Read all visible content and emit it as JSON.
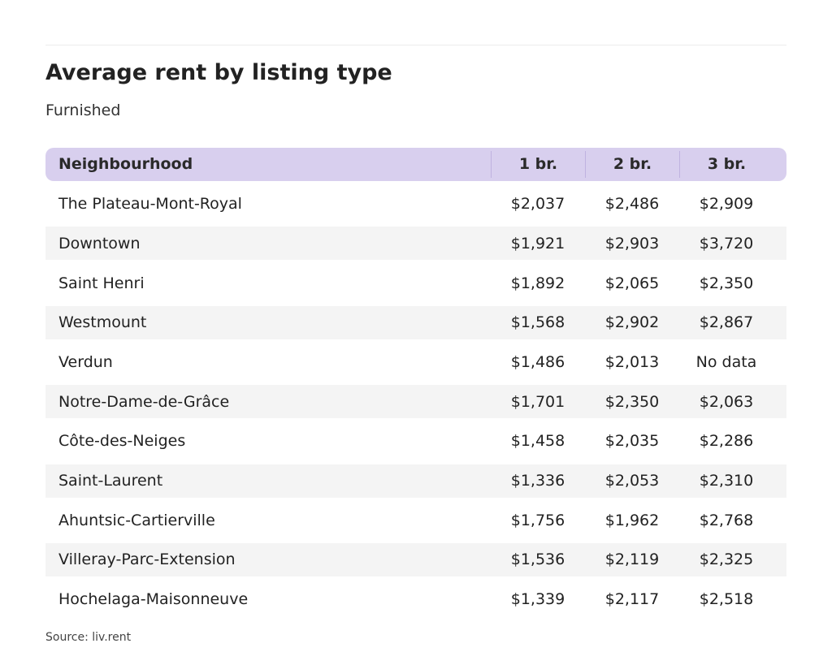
{
  "chart_data": {
    "type": "table",
    "title": "Average rent by listing type",
    "subtitle": "Furnished",
    "columns": [
      "Neighbourhood",
      "1 br.",
      "2 br.",
      "3 br."
    ],
    "rows": [
      [
        "The Plateau-Mont-Royal",
        "$2,037",
        "$2,486",
        "$2,909"
      ],
      [
        "Downtown",
        "$1,921",
        "$2,903",
        "$3,720"
      ],
      [
        "Saint Henri",
        "$1,892",
        "$2,065",
        "$2,350"
      ],
      [
        "Westmount",
        "$1,568",
        "$2,902",
        "$2,867"
      ],
      [
        "Verdun",
        "$1,486",
        "$2,013",
        "No data"
      ],
      [
        "Notre-Dame-de-Grâce",
        "$1,701",
        "$2,350",
        "$2,063"
      ],
      [
        "Côte-des-Neiges",
        "$1,458",
        "$2,035",
        "$2,286"
      ],
      [
        "Saint-Laurent",
        "$1,336",
        "$2,053",
        "$2,310"
      ],
      [
        "Ahuntsic-Cartierville",
        "$1,756",
        "$1,962",
        "$2,768"
      ],
      [
        "Villeray-Parc-Extension",
        "$1,536",
        "$2,119",
        "$2,325"
      ],
      [
        "Hochelaga-Maisonneuve",
        "$1,339",
        "$2,117",
        "$2,518"
      ]
    ],
    "source": "Source: liv.rent",
    "colors": {
      "header_background": "#d8cfee",
      "stripe_background": "#f4f4f4"
    }
  }
}
